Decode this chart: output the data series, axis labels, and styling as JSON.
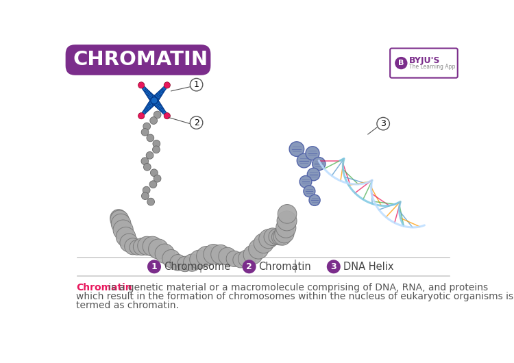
{
  "title": "CHROMATIN",
  "title_bg_color": "#7b2d8b",
  "title_text_color": "#ffffff",
  "background_color": "#ffffff",
  "legend_items": [
    {
      "number": "1",
      "label": "Chromosome"
    },
    {
      "number": "2",
      "label": "Chromatin"
    },
    {
      "number": "3",
      "label": "DNA Helix"
    }
  ],
  "legend_circle_color": "#7b2d8b",
  "description_word": "Chromatin",
  "description_word_color": "#e8175d",
  "description_rest": " is a genetic material or a macromolecule comprising of DNA, RNA, and proteins\nwhich result in the formation of chromosomes within the nucleus of eukaryotic organisms is\ntermed as chromatin.",
  "description_text_color": "#555555",
  "chromosome_blue": "#1565c0",
  "chromosome_red": "#e8175d",
  "chromatin_gray": "#aaaaaa",
  "dna_blue": "#7ec8e3",
  "dna_red": "#e8175d",
  "dna_green": "#4caf50",
  "label_circle_border": "#555555",
  "byju_purple": "#7b2d8b"
}
